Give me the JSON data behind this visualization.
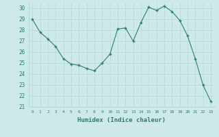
{
  "x": [
    0,
    1,
    2,
    3,
    4,
    5,
    6,
    7,
    8,
    9,
    10,
    11,
    12,
    13,
    14,
    15,
    16,
    17,
    18,
    19,
    20,
    21,
    22,
    23
  ],
  "y": [
    29,
    27.8,
    27.2,
    26.5,
    25.4,
    24.9,
    24.8,
    24.5,
    24.3,
    25.0,
    25.8,
    28.1,
    28.2,
    27.0,
    28.7,
    30.1,
    29.8,
    30.2,
    29.7,
    28.9,
    27.5,
    25.4,
    23.0,
    21.5
  ],
  "xlabel": "Humidex (Indice chaleur)",
  "ylim": [
    21,
    30.5
  ],
  "xlim": [
    -0.5,
    23.5
  ],
  "yticks": [
    21,
    22,
    23,
    24,
    25,
    26,
    27,
    28,
    29,
    30
  ],
  "xticks": [
    0,
    1,
    2,
    3,
    4,
    5,
    6,
    7,
    8,
    9,
    10,
    11,
    12,
    13,
    14,
    15,
    16,
    17,
    18,
    19,
    20,
    21,
    22,
    23
  ],
  "line_color": "#2e7d6e",
  "bg_color": "#ceeae8",
  "grid_color": "#b8d8d4"
}
